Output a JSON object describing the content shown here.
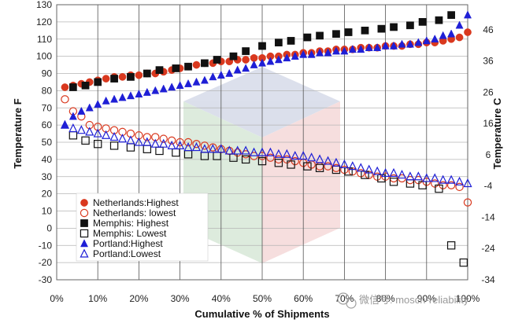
{
  "watermark": {
    "text": "微信号: mosch-reliability",
    "icon": "wechat-icon"
  },
  "chart_data": {
    "type": "scatter",
    "title": "",
    "xlabel": "Cumulative % of Shipments",
    "ylabel": "Temperature F",
    "ylabel_right": "Temperature C",
    "xlim": [
      0,
      100
    ],
    "ylim": [
      -30,
      130
    ],
    "y2lim": [
      -34,
      54
    ],
    "x_ticks": [
      "0%",
      "10%",
      "20%",
      "30%",
      "40%",
      "50%",
      "60%",
      "70%",
      "80%",
      "90%",
      "100%"
    ],
    "y_ticks": [
      "-30",
      "-20",
      "-10",
      "0",
      "10",
      "20",
      "30",
      "40",
      "50",
      "60",
      "70",
      "80",
      "90",
      "100",
      "110",
      "120",
      "130"
    ],
    "y2_ticks": [
      "-34",
      "-24",
      "-14",
      "-4",
      "6",
      "16",
      "26",
      "36",
      "46"
    ],
    "grid": {
      "horizontal": true,
      "vertical": true
    },
    "legend_position": "bottom-left",
    "series": [
      {
        "name": "Netherlands:Highest",
        "marker": "circle-filled",
        "color": "#d9381e",
        "x": [
          2,
          4,
          6,
          8,
          10,
          12,
          14,
          16,
          18,
          20,
          22,
          24,
          26,
          28,
          30,
          32,
          34,
          36,
          38,
          40,
          42,
          44,
          46,
          48,
          50,
          52,
          54,
          56,
          58,
          60,
          62,
          64,
          66,
          68,
          70,
          72,
          74,
          76,
          78,
          80,
          82,
          84,
          86,
          88,
          90,
          92,
          94,
          96,
          98,
          100
        ],
        "y": [
          82,
          83,
          84,
          85,
          86,
          87,
          88,
          88,
          89,
          89,
          90,
          90,
          91,
          92,
          93,
          94,
          95,
          96,
          96,
          97,
          97,
          98,
          98,
          99,
          99,
          100,
          100,
          101,
          101,
          102,
          102,
          103,
          103,
          104,
          104,
          104,
          105,
          105,
          105,
          106,
          106,
          106,
          107,
          107,
          108,
          108,
          109,
          110,
          111,
          114
        ]
      },
      {
        "name": "Netherlands: lowest",
        "marker": "circle-open",
        "color": "#d9381e",
        "x": [
          2,
          4,
          6,
          8,
          10,
          12,
          14,
          16,
          18,
          20,
          22,
          24,
          26,
          28,
          30,
          32,
          34,
          36,
          38,
          40,
          42,
          44,
          46,
          48,
          50,
          52,
          54,
          56,
          58,
          60,
          62,
          64,
          66,
          68,
          70,
          72,
          74,
          76,
          78,
          80,
          82,
          84,
          86,
          88,
          90,
          92,
          94,
          96,
          98,
          100
        ],
        "y": [
          75,
          68,
          65,
          60,
          59,
          58,
          57,
          56,
          55,
          54,
          53,
          53,
          52,
          51,
          50,
          50,
          49,
          48,
          47,
          46,
          45,
          44,
          43,
          42,
          42,
          41,
          40,
          40,
          39,
          38,
          37,
          36,
          36,
          35,
          34,
          33,
          32,
          31,
          30,
          30,
          29,
          29,
          28,
          28,
          27,
          26,
          25,
          25,
          24,
          15
        ]
      },
      {
        "name": "Memphis: Highest",
        "marker": "square-filled",
        "color": "#111111",
        "x": [
          4,
          7,
          10,
          14,
          18,
          22,
          25,
          29,
          32,
          36,
          39,
          43,
          46,
          50,
          54,
          57,
          61,
          64,
          68,
          71,
          75,
          79,
          82,
          86,
          89,
          93,
          96
        ],
        "y": [
          82,
          83,
          85,
          87,
          88,
          90,
          92,
          93,
          94,
          96,
          98,
          100,
          103,
          106,
          108,
          109,
          111,
          112,
          113,
          114,
          115,
          116,
          117,
          118,
          120,
          121,
          124
        ]
      },
      {
        "name": "Memphis: Lowest",
        "marker": "square-open",
        "color": "#111111",
        "x": [
          4,
          7,
          10,
          14,
          18,
          22,
          25,
          29,
          32,
          36,
          39,
          43,
          46,
          50,
          54,
          57,
          61,
          64,
          68,
          71,
          75,
          79,
          82,
          86,
          89,
          93,
          96,
          99
        ],
        "y": [
          54,
          51,
          49,
          48,
          47,
          46,
          45,
          44,
          43,
          42,
          42,
          41,
          40,
          39,
          38,
          37,
          36,
          35,
          34,
          33,
          31,
          29,
          27,
          26,
          25,
          23,
          -10,
          -20
        ]
      },
      {
        "name": "Portland:Highest",
        "marker": "triangle-filled",
        "color": "#1f1fd6",
        "x": [
          2,
          4,
          6,
          8,
          10,
          12,
          14,
          16,
          18,
          20,
          22,
          24,
          26,
          28,
          30,
          32,
          34,
          36,
          38,
          40,
          42,
          44,
          46,
          48,
          50,
          52,
          54,
          56,
          58,
          60,
          62,
          64,
          66,
          68,
          70,
          72,
          74,
          76,
          78,
          80,
          82,
          84,
          86,
          88,
          90,
          92,
          94,
          96,
          98,
          100
        ],
        "y": [
          60,
          65,
          68,
          70,
          72,
          74,
          75,
          76,
          77,
          78,
          79,
          80,
          81,
          82,
          83,
          84,
          85,
          86,
          88,
          89,
          90,
          92,
          93,
          95,
          96,
          97,
          98,
          99,
          100,
          101,
          101,
          102,
          102,
          103,
          103,
          104,
          104,
          105,
          105,
          106,
          106,
          107,
          107,
          108,
          109,
          110,
          112,
          113,
          118,
          124
        ]
      },
      {
        "name": "Portland:Lowest",
        "marker": "triangle-open",
        "color": "#1f1fd6",
        "x": [
          2,
          4,
          6,
          8,
          10,
          12,
          14,
          16,
          18,
          20,
          22,
          24,
          26,
          28,
          30,
          32,
          34,
          36,
          38,
          40,
          42,
          44,
          46,
          48,
          50,
          52,
          54,
          56,
          58,
          60,
          62,
          64,
          66,
          68,
          70,
          72,
          74,
          76,
          78,
          80,
          82,
          84,
          86,
          88,
          90,
          92,
          94,
          96,
          98,
          100
        ],
        "y": [
          60,
          58,
          57,
          56,
          55,
          54,
          53,
          52,
          51,
          50,
          50,
          49,
          49,
          48,
          48,
          47,
          47,
          46,
          46,
          46,
          45,
          45,
          45,
          44,
          44,
          44,
          43,
          43,
          42,
          42,
          41,
          40,
          39,
          38,
          37,
          36,
          35,
          34,
          33,
          32,
          32,
          31,
          30,
          30,
          29,
          29,
          28,
          28,
          27,
          26
        ]
      }
    ]
  }
}
